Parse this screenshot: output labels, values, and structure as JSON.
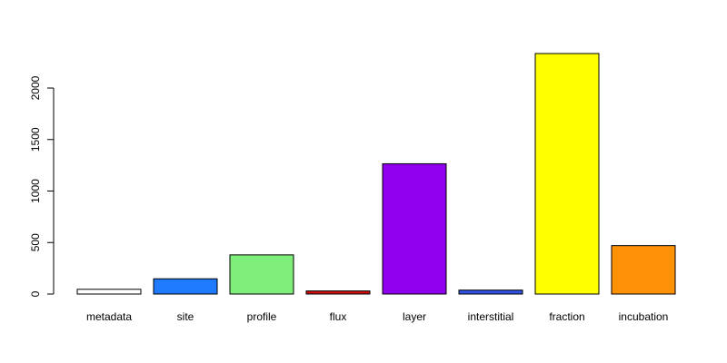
{
  "chart_data": {
    "type": "bar",
    "title": "",
    "xlabel": "",
    "ylabel": "",
    "categories": [
      "metadata",
      "site",
      "profile",
      "flux",
      "layer",
      "interstitial",
      "fraction",
      "incubation"
    ],
    "values": [
      46,
      148,
      380,
      30,
      1265,
      38,
      2335,
      470
    ],
    "colors": [
      "#FFFFFF",
      "#1E7BFF",
      "#80EE7A",
      "#CC1010",
      "#8F00EE",
      "#2F52E0",
      "#FFFF00",
      "#FF9107"
    ],
    "ylim": [
      0,
      2335
    ],
    "yticks": [
      0,
      500,
      1000,
      1500,
      2000
    ],
    "ytick_labels": [
      "0",
      "500",
      "1000",
      "1500",
      "2000"
    ],
    "grid": false,
    "legend": "none"
  }
}
